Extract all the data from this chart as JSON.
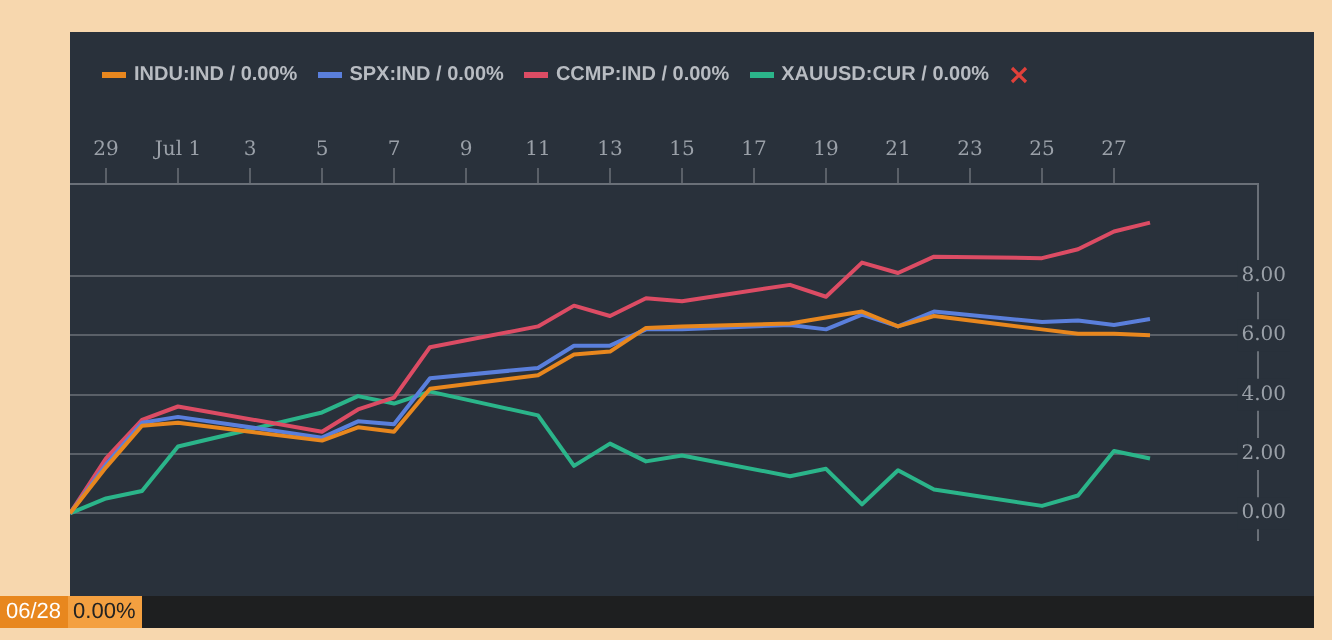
{
  "chart_data": {
    "type": "line",
    "x": [
      "--06-28",
      "--06-29",
      "--06-30",
      "--07-01",
      "--07-05",
      "--07-06",
      "--07-07",
      "--07-08",
      "--07-11",
      "--07-12",
      "--07-13",
      "--07-14",
      "--07-15",
      "--07-18",
      "--07-19",
      "--07-20",
      "--07-21",
      "--07-22",
      "--07-25",
      "--07-26",
      "--07-27",
      "--07-28"
    ],
    "series": [
      {
        "name": "INDU:IND / 0.00%",
        "color": "#e8871e",
        "values": [
          0,
          1.55,
          2.95,
          3.05,
          2.45,
          2.9,
          2.75,
          4.2,
          4.65,
          5.35,
          5.45,
          6.25,
          6.3,
          6.4,
          6.6,
          6.8,
          6.3,
          6.65,
          6.2,
          6.05,
          6.05,
          6.0
        ]
      },
      {
        "name": "SPX:IND / 0.00%",
        "color": "#5a7fdc",
        "values": [
          0,
          1.65,
          3.05,
          3.25,
          2.55,
          3.1,
          3.0,
          4.55,
          4.9,
          5.65,
          5.65,
          6.2,
          6.2,
          6.35,
          6.2,
          6.7,
          6.3,
          6.8,
          6.45,
          6.5,
          6.35,
          6.55
        ]
      },
      {
        "name": "CCMP:IND / 0.00%",
        "color": "#dc4c64",
        "values": [
          0,
          1.85,
          3.15,
          3.6,
          2.75,
          3.5,
          3.9,
          5.6,
          6.3,
          7.0,
          6.65,
          7.25,
          7.15,
          7.7,
          7.3,
          8.45,
          8.1,
          8.65,
          8.6,
          8.9,
          9.5,
          9.8
        ]
      },
      {
        "name": "XAUUSD:CUR / 0.00%",
        "color": "#2bb58a",
        "values": [
          0,
          0.5,
          0.75,
          2.25,
          3.4,
          3.95,
          3.7,
          4.1,
          3.3,
          1.6,
          2.35,
          1.75,
          1.95,
          1.25,
          1.5,
          0.3,
          1.45,
          0.8,
          0.25,
          0.6,
          2.1,
          1.85
        ]
      }
    ],
    "xlim": [
      "--06-28",
      "--07-31"
    ],
    "xticks": [
      {
        "value": "--06-29",
        "label": "29"
      },
      {
        "value": "--07-01",
        "label": "Jul 1"
      },
      {
        "value": "--07-03",
        "label": "3"
      },
      {
        "value": "--07-05",
        "label": "5"
      },
      {
        "value": "--07-07",
        "label": "7"
      },
      {
        "value": "--07-09",
        "label": "9"
      },
      {
        "value": "--07-11",
        "label": "11"
      },
      {
        "value": "--07-13",
        "label": "13"
      },
      {
        "value": "--07-15",
        "label": "15"
      },
      {
        "value": "--07-17",
        "label": "17"
      },
      {
        "value": "--07-19",
        "label": "19"
      },
      {
        "value": "--07-21",
        "label": "21"
      },
      {
        "value": "--07-23",
        "label": "23"
      },
      {
        "value": "--07-25",
        "label": "25"
      },
      {
        "value": "--07-27",
        "label": "27"
      }
    ],
    "ylim": [
      -0.9,
      11.1
    ],
    "yticks": [
      {
        "value": 0,
        "label": "0.00"
      },
      {
        "value": 2,
        "label": "2.00"
      },
      {
        "value": 4,
        "label": "4.00"
      },
      {
        "value": 6,
        "label": "6.00"
      },
      {
        "value": 8,
        "label": "8.00"
      }
    ],
    "grid": "y",
    "legend": "top left",
    "marker": "none",
    "line_style": "solid",
    "annotations": [
      "06/28",
      "0.00%"
    ]
  }
}
